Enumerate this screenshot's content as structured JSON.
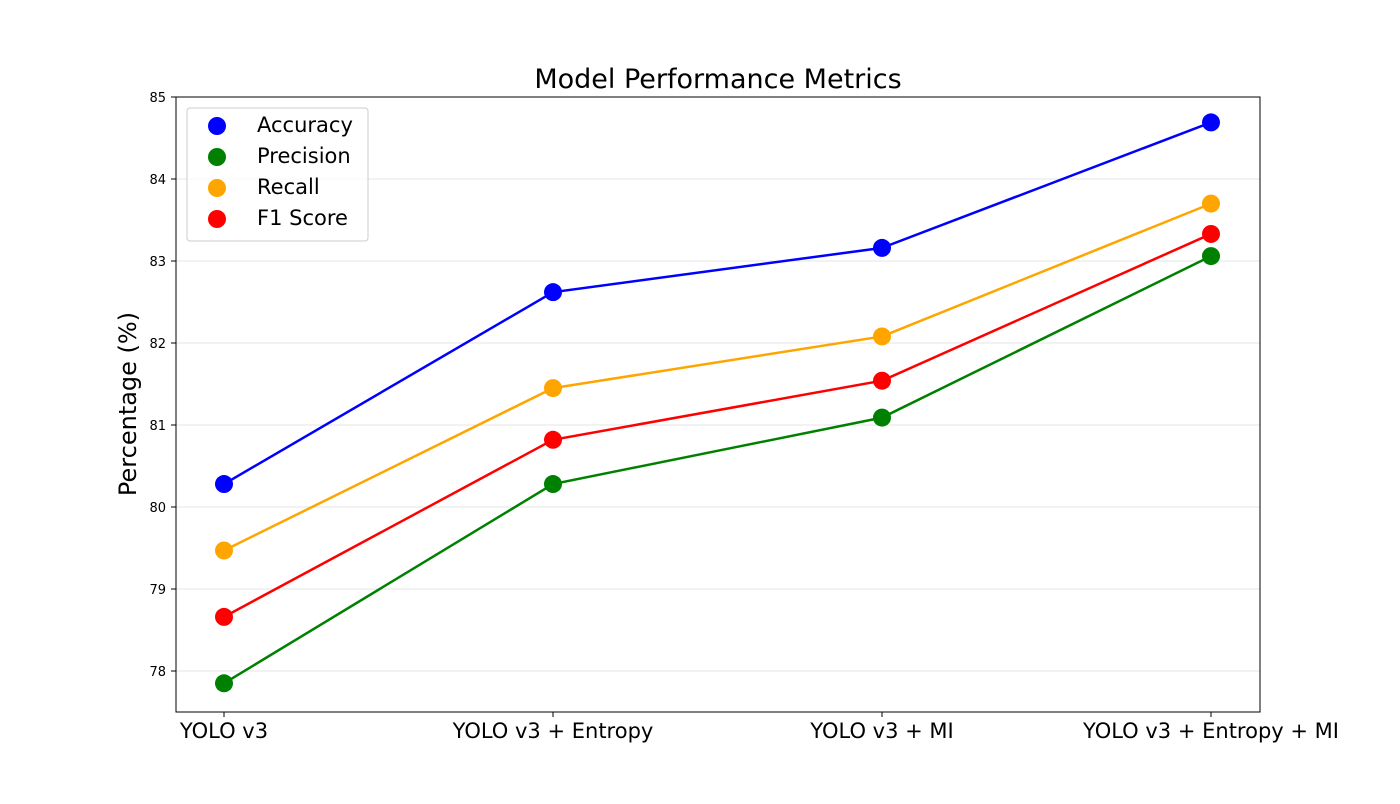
{
  "chart_data": {
    "type": "line",
    "title": "Model Performance Metrics",
    "xlabel": "",
    "ylabel": "Percentage (%)",
    "categories": [
      "YOLO v3",
      "YOLO v3 + Entropy",
      "YOLO v3 + MI",
      "YOLO v3 + Entropy + MI"
    ],
    "ylim": [
      77.5,
      85.0
    ],
    "yticks": [
      "78",
      "79",
      "80",
      "81",
      "82",
      "83",
      "84",
      "85"
    ],
    "grid": "horizontal",
    "legend_position": "top-left",
    "series": [
      {
        "name": "Accuracy",
        "color": "#0000ff",
        "values": [
          80.28,
          82.62,
          83.16,
          84.69
        ]
      },
      {
        "name": "Precision",
        "color": "#008000",
        "values": [
          77.85,
          80.28,
          81.09,
          83.06
        ]
      },
      {
        "name": "Recall",
        "color": "#ffa500",
        "values": [
          79.47,
          81.45,
          82.08,
          83.7
        ]
      },
      {
        "name": "F1 Score",
        "color": "#ff0000",
        "values": [
          78.66,
          80.82,
          81.54,
          83.33
        ]
      }
    ]
  }
}
